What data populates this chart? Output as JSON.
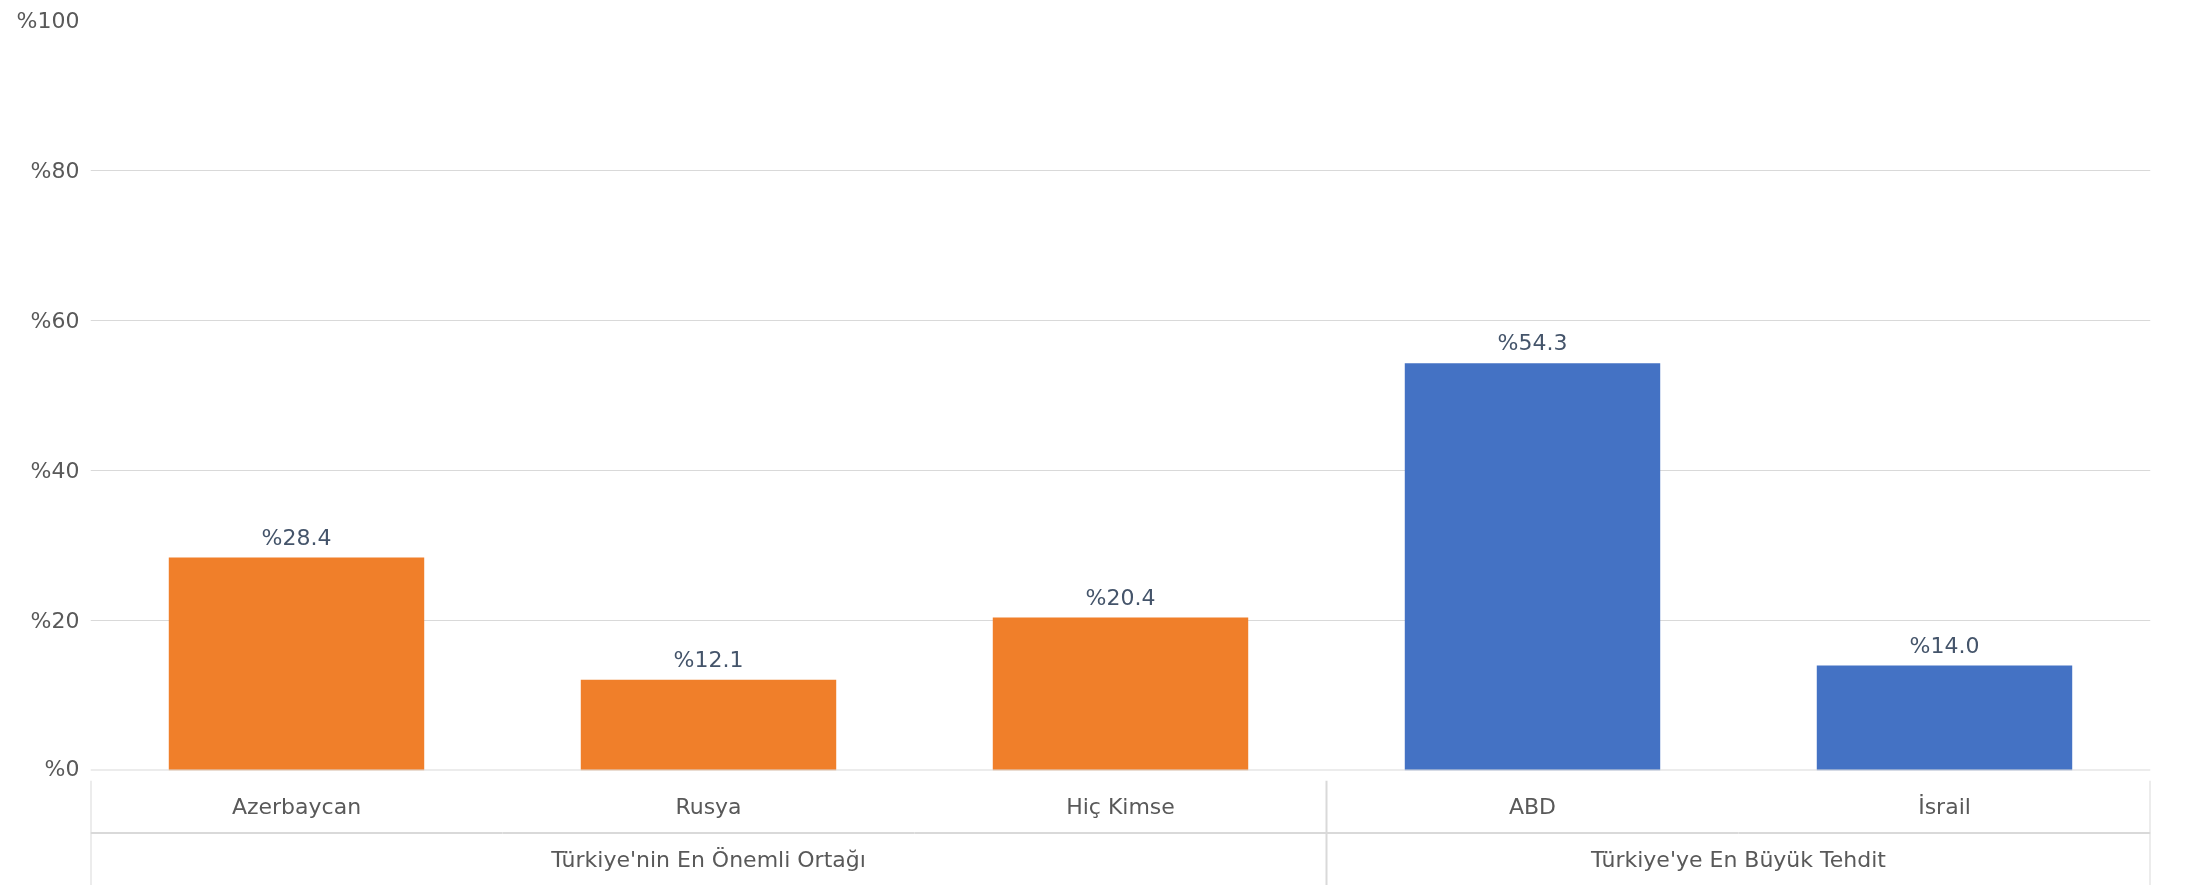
{
  "chart_data": {
    "type": "bar",
    "categories": [
      "Azerbaycan",
      "Rusya",
      "Hiç Kimse",
      "ABD",
      "İsrail"
    ],
    "values": [
      28.4,
      12.1,
      20.4,
      54.3,
      14.0
    ],
    "colors": [
      "#f07f2a",
      "#f07f2a",
      "#f07f2a",
      "#4472c4",
      "#4472c4"
    ],
    "value_labels": [
      "%28.4",
      "%12.1",
      "%20.4",
      "%54.3",
      "%14.0"
    ],
    "ylim": [
      0,
      100
    ],
    "yticks": [
      {
        "value": 0,
        "label": "%0"
      },
      {
        "value": 20,
        "label": "%20"
      },
      {
        "value": 40,
        "label": "%40"
      },
      {
        "value": 60,
        "label": "%60"
      },
      {
        "value": 80,
        "label": "%80"
      },
      {
        "value": 100,
        "label": "%100"
      }
    ],
    "grid": "y",
    "annotations": [
      "Türkiye'nin En Önemli Ortağı",
      "Türkiye'ye En Büyük Tehdit"
    ]
  }
}
